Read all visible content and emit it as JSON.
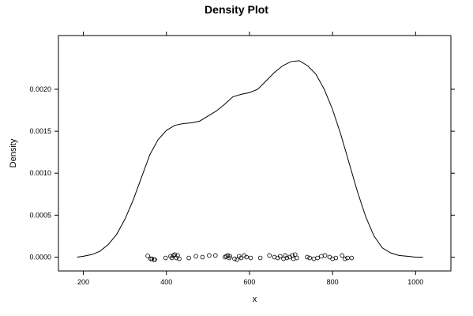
{
  "chart_data": {
    "type": "line",
    "title": "Density Plot",
    "xlabel": "x",
    "ylabel": "Density",
    "xlim": [
      140,
      1085
    ],
    "ylim": [
      -0.000165,
      0.00264
    ],
    "xticks": [
      200,
      400,
      600,
      800,
      1000
    ],
    "xtick_labels": [
      "200",
      "400",
      "600",
      "800",
      "1000"
    ],
    "yticks": [
      0,
      0.0005,
      0.001,
      0.0015,
      0.002
    ],
    "ytick_labels": [
      "0.0000",
      "0.0005",
      "0.0010",
      "0.0015",
      "0.0020"
    ],
    "grid": false,
    "series": [
      {
        "x": [
          185,
          200,
          220,
          240,
          260,
          280,
          300,
          320,
          340,
          360,
          380,
          400,
          420,
          440,
          460,
          480,
          500,
          520,
          540,
          560,
          580,
          600,
          620,
          640,
          660,
          680,
          700,
          720,
          740,
          760,
          780,
          800,
          820,
          840,
          860,
          880,
          900,
          920,
          940,
          960,
          980,
          1000,
          1018
        ],
        "y": [
          0.0,
          1e-05,
          3e-05,
          7e-05,
          0.00015,
          0.00027,
          0.00045,
          0.00068,
          0.00095,
          0.00122,
          0.0014,
          0.00151,
          0.00157,
          0.00159,
          0.0016,
          0.00162,
          0.00168,
          0.00174,
          0.00182,
          0.00191,
          0.00194,
          0.00196,
          0.002,
          0.0021,
          0.0022,
          0.00228,
          0.00233,
          0.00234,
          0.00228,
          0.00218,
          0.002,
          0.00176,
          0.00146,
          0.00112,
          0.00078,
          0.00048,
          0.00025,
          0.00011,
          5e-05,
          2e-05,
          1e-05,
          0.0,
          0.0
        ]
      }
    ],
    "rug": {
      "x": [
        355,
        362,
        365,
        370,
        372,
        398,
        410,
        413,
        417,
        420,
        424,
        427,
        431,
        454,
        471,
        487,
        503,
        518,
        541,
        544,
        548,
        551,
        553,
        564,
        570,
        575,
        580,
        587,
        593,
        603,
        626,
        648,
        660,
        668,
        674,
        682,
        686,
        690,
        697,
        703,
        706,
        710,
        714,
        739,
        745,
        755,
        764,
        773,
        782,
        793,
        800,
        808,
        823,
        830,
        836,
        846
      ],
      "y": [
        1.5e-05,
        -2e-05,
        -2e-05,
        -3e-05,
        -3e-05,
        -1e-05,
        1e-05,
        -1e-05,
        2e-05,
        3e-05,
        -1e-05,
        2e-05,
        -2e-05,
        -1e-05,
        1e-05,
        0.0,
        2e-05,
        2e-05,
        0.0,
        1e-05,
        2e-05,
        -1e-05,
        1e-05,
        -2e-05,
        -3e-05,
        1e-05,
        -1e-05,
        2e-05,
        0.0,
        -1e-05,
        -1e-05,
        2e-05,
        0.0,
        -1e-05,
        1e-05,
        -2e-05,
        2e-05,
        -1e-05,
        0.0,
        2e-05,
        -2e-05,
        3e-05,
        -1e-05,
        0.0,
        -1e-05,
        -2e-05,
        -1e-05,
        1e-05,
        2e-05,
        0.0,
        -2e-05,
        -1e-05,
        2e-05,
        -2e-05,
        -1e-05,
        -1e-05
      ]
    }
  }
}
